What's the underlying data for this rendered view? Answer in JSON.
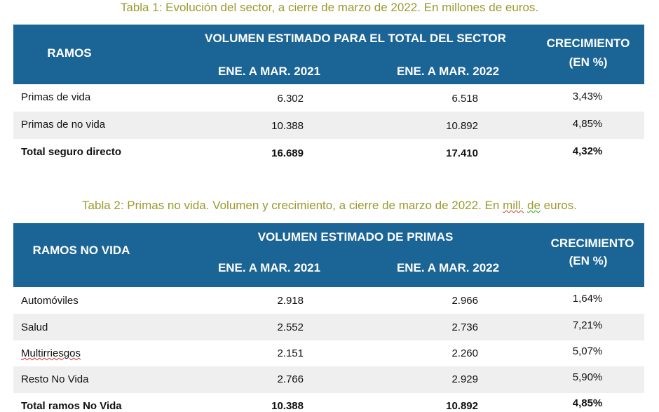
{
  "table1": {
    "title": "Tabla 1: Evolución del sector, a cierre de marzo de 2022. En millones de euros.",
    "header": {
      "ramos": "RAMOS",
      "volumen": "VOLUMEN ESTIMADO PARA EL TOTAL DEL SECTOR",
      "period_2021": "ENE. A MAR. 2021",
      "period_2022": "ENE. A MAR. 2022",
      "crecimiento": "CRECIMIENTO",
      "crecimiento_unit": "(EN %)"
    },
    "rows": [
      {
        "ramo": "Primas de vida",
        "v2021": "6.302",
        "v2022": "6.518",
        "crec": "3,43%"
      },
      {
        "ramo": "Primas de no vida",
        "v2021": "10.388",
        "v2022": "10.892",
        "crec": "4,85%"
      },
      {
        "ramo": "Total seguro directo",
        "v2021": "16.689",
        "v2022": "17.410",
        "crec": "4,32%"
      }
    ]
  },
  "table2": {
    "title_a": "Tabla 2: Primas no vida. Volumen y crecimiento,  a cierre de marzo de 2022. En ",
    "title_b": "mill.",
    "title_c": " ",
    "title_d": "de",
    "title_e": " euros.",
    "header": {
      "ramos": "RAMOS NO VIDA",
      "volumen": "VOLUMEN ESTIMADO DE PRIMAS",
      "period_2021": "ENE. A MAR. 2021",
      "period_2022": "ENE. A MAR. 2022",
      "crecimiento": "CRECIMIENTO",
      "crecimiento_unit": "(EN %)"
    },
    "rows": [
      {
        "ramo": "Automóviles",
        "v2021": "2.918",
        "v2022": "2.966",
        "crec": "1,64%"
      },
      {
        "ramo": "Salud",
        "v2021": "2.552",
        "v2022": "2.736",
        "crec": "7,21%"
      },
      {
        "ramo": "Multirriesgos",
        "v2021": "2.151",
        "v2022": "2.260",
        "crec": "5,07%"
      },
      {
        "ramo": "Resto No Vida",
        "v2021": "2.766",
        "v2022": "2.929",
        "crec": "5,90%"
      },
      {
        "ramo": "Total ramos  No Vida",
        "v2021": "10.388",
        "v2022": "10.892",
        "crec": "4,85%"
      }
    ]
  }
}
